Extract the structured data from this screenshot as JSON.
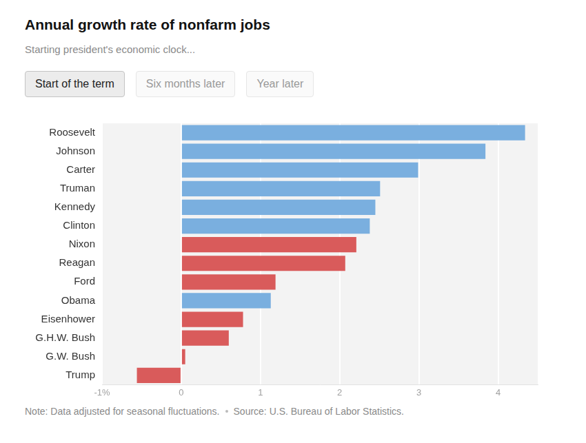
{
  "title": "Annual growth rate of nonfarm jobs",
  "subtitle": "Starting president's economic clock...",
  "buttons": [
    "Start of the term",
    "Six months later",
    "Year later"
  ],
  "selected_button": "Start of the term",
  "note": "Note: Data adjusted for seasonal fluctuations.",
  "source": "Source: U.S. Bureau of Labor Statistics.",
  "chart_data": {
    "type": "bar",
    "orientation": "horizontal",
    "categories": [
      "Roosevelt",
      "Johnson",
      "Carter",
      "Truman",
      "Kennedy",
      "Clinton",
      "Nixon",
      "Reagan",
      "Ford",
      "Obama",
      "Eisenhower",
      "G.H.W. Bush",
      "G.W. Bush",
      "Trump"
    ],
    "values": [
      4.34,
      3.84,
      2.99,
      2.51,
      2.45,
      2.38,
      2.21,
      2.07,
      1.19,
      1.13,
      0.78,
      0.6,
      0.05,
      -0.56
    ],
    "colors": [
      "#7aafdf",
      "#7aafdf",
      "#7aafdf",
      "#7aafdf",
      "#7aafdf",
      "#7aafdf",
      "#d95b5b",
      "#d95b5b",
      "#d95b5b",
      "#7aafdf",
      "#d95b5b",
      "#d95b5b",
      "#d95b5b",
      "#d95b5b"
    ],
    "xlim": [
      -1,
      4.5
    ],
    "xticks": [
      {
        "value": -1,
        "label": "-1%"
      },
      0,
      1,
      2,
      3,
      4
    ],
    "grid": true
  }
}
